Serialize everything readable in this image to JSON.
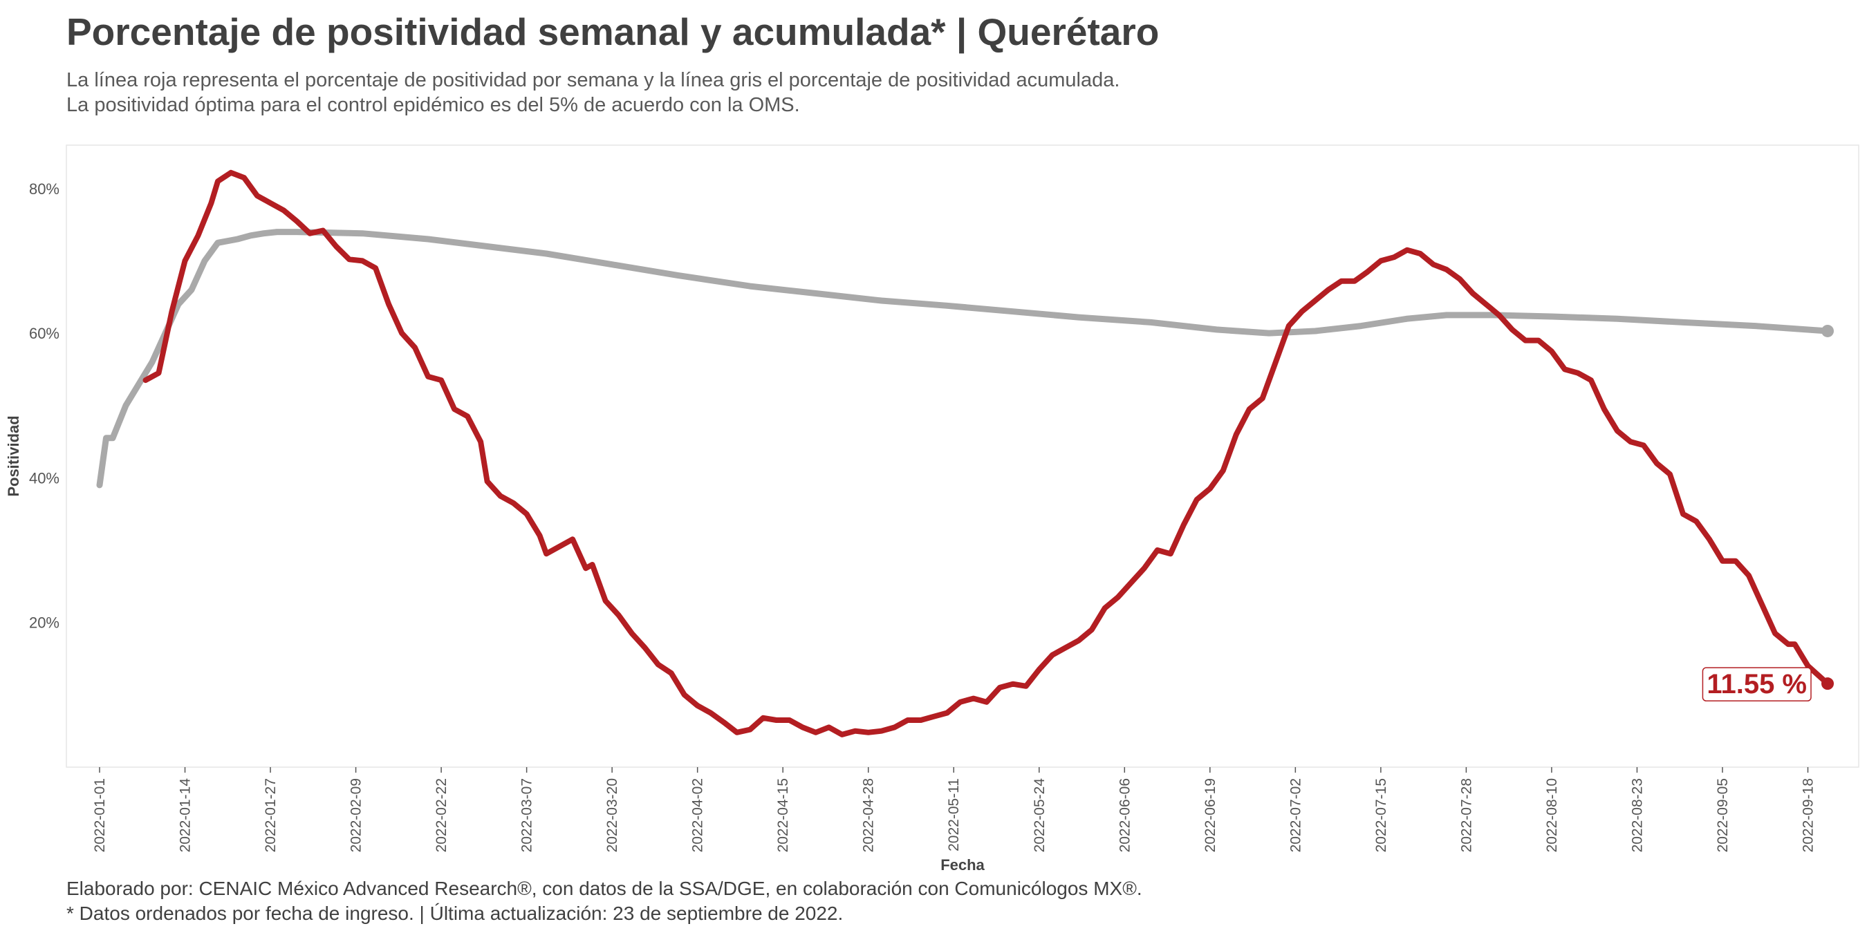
{
  "title": "Porcentaje de positividad semanal y acumulada* | Querétaro",
  "subtitle": [
    "La línea roja representa el porcentaje de positividad por semana y la línea gris el porcentaje de positividad acumulada.",
    "La positividad óptima para el control epidémico es del 5% de acuerdo con la OMS."
  ],
  "caption": [
    "Elaborado por: CENAIC México Advanced Research®, con datos de la SSA/DGE, en colaboración con Comunicólogos MX®.",
    "* Datos ordenados por fecha de ingreso. | Última actualización: 23 de septiembre de 2022."
  ],
  "colors": {
    "weekly": "#b31e22",
    "cumulative": "#a9a9a9"
  },
  "chart_data": {
    "type": "line",
    "xlabel": "Fecha",
    "ylabel": "Positividad",
    "x_start": "2022-01-01",
    "x_end": "2022-09-21",
    "ylim": [
      0,
      86
    ],
    "y_ticks": [
      20,
      40,
      60,
      80
    ],
    "y_tick_labels": [
      "20%",
      "40%",
      "60%",
      "80%"
    ],
    "x_tick_labels": [
      "2022-01-01",
      "2022-01-14",
      "2022-01-27",
      "2022-02-09",
      "2022-02-22",
      "2022-03-07",
      "2022-03-20",
      "2022-04-02",
      "2022-04-15",
      "2022-04-28",
      "2022-05-11",
      "2022-05-24",
      "2022-06-06",
      "2022-06-19",
      "2022-07-02",
      "2022-07-15",
      "2022-07-28",
      "2022-08-10",
      "2022-08-23",
      "2022-09-05",
      "2022-09-18"
    ],
    "grid": false,
    "end_label": "11.55 %",
    "series": [
      {
        "key": "weekly",
        "values": [
          [
            "2022-01-08",
            53.5
          ],
          [
            "2022-01-10",
            54.5
          ],
          [
            "2022-01-12",
            63
          ],
          [
            "2022-01-14",
            70
          ],
          [
            "2022-01-16",
            73.5
          ],
          [
            "2022-01-18",
            78
          ],
          [
            "2022-01-19",
            81
          ],
          [
            "2022-01-21",
            82.2
          ],
          [
            "2022-01-23",
            81.5
          ],
          [
            "2022-01-25",
            79
          ],
          [
            "2022-01-27",
            78
          ],
          [
            "2022-01-29",
            77
          ],
          [
            "2022-01-31",
            75.5
          ],
          [
            "2022-02-02",
            73.8
          ],
          [
            "2022-02-04",
            74.2
          ],
          [
            "2022-02-06",
            72
          ],
          [
            "2022-02-08",
            70.2
          ],
          [
            "2022-02-10",
            70
          ],
          [
            "2022-02-12",
            69
          ],
          [
            "2022-02-14",
            64
          ],
          [
            "2022-02-16",
            60
          ],
          [
            "2022-02-18",
            58
          ],
          [
            "2022-02-20",
            54
          ],
          [
            "2022-02-22",
            53.5
          ],
          [
            "2022-02-24",
            49.5
          ],
          [
            "2022-02-26",
            48.5
          ],
          [
            "2022-02-28",
            45
          ],
          [
            "2022-03-01",
            39.5
          ],
          [
            "2022-03-03",
            37.5
          ],
          [
            "2022-03-05",
            36.5
          ],
          [
            "2022-03-07",
            35
          ],
          [
            "2022-03-09",
            32
          ],
          [
            "2022-03-10",
            29.5
          ],
          [
            "2022-03-12",
            30.5
          ],
          [
            "2022-03-14",
            31.5
          ],
          [
            "2022-03-16",
            27.5
          ],
          [
            "2022-03-17",
            28
          ],
          [
            "2022-03-19",
            23
          ],
          [
            "2022-03-21",
            21
          ],
          [
            "2022-03-23",
            18.5
          ],
          [
            "2022-03-25",
            16.5
          ],
          [
            "2022-03-27",
            14.2
          ],
          [
            "2022-03-29",
            13
          ],
          [
            "2022-03-31",
            10
          ],
          [
            "2022-04-02",
            8.5
          ],
          [
            "2022-04-04",
            7.5
          ],
          [
            "2022-04-06",
            6.2
          ],
          [
            "2022-04-08",
            4.8
          ],
          [
            "2022-04-10",
            5.2
          ],
          [
            "2022-04-12",
            6.8
          ],
          [
            "2022-04-14",
            6.5
          ],
          [
            "2022-04-16",
            6.5
          ],
          [
            "2022-04-18",
            5.5
          ],
          [
            "2022-04-20",
            4.8
          ],
          [
            "2022-04-22",
            5.5
          ],
          [
            "2022-04-24",
            4.5
          ],
          [
            "2022-04-26",
            5
          ],
          [
            "2022-04-28",
            4.8
          ],
          [
            "2022-04-30",
            5
          ],
          [
            "2022-05-02",
            5.5
          ],
          [
            "2022-05-04",
            6.5
          ],
          [
            "2022-05-06",
            6.5
          ],
          [
            "2022-05-08",
            7
          ],
          [
            "2022-05-10",
            7.5
          ],
          [
            "2022-05-12",
            9
          ],
          [
            "2022-05-14",
            9.5
          ],
          [
            "2022-05-16",
            9
          ],
          [
            "2022-05-18",
            11
          ],
          [
            "2022-05-20",
            11.5
          ],
          [
            "2022-05-22",
            11.2
          ],
          [
            "2022-05-24",
            13.5
          ],
          [
            "2022-05-26",
            15.5
          ],
          [
            "2022-05-28",
            16.5
          ],
          [
            "2022-05-30",
            17.5
          ],
          [
            "2022-06-01",
            19
          ],
          [
            "2022-06-03",
            22
          ],
          [
            "2022-06-05",
            23.5
          ],
          [
            "2022-06-07",
            25.5
          ],
          [
            "2022-06-09",
            27.5
          ],
          [
            "2022-06-11",
            30
          ],
          [
            "2022-06-13",
            29.5
          ],
          [
            "2022-06-15",
            33.5
          ],
          [
            "2022-06-17",
            37
          ],
          [
            "2022-06-19",
            38.5
          ],
          [
            "2022-06-21",
            41
          ],
          [
            "2022-06-23",
            46
          ],
          [
            "2022-06-25",
            49.5
          ],
          [
            "2022-06-27",
            51
          ],
          [
            "2022-06-29",
            56
          ],
          [
            "2022-07-01",
            61
          ],
          [
            "2022-07-03",
            63
          ],
          [
            "2022-07-05",
            64.5
          ],
          [
            "2022-07-07",
            66
          ],
          [
            "2022-07-09",
            67.2
          ],
          [
            "2022-07-11",
            67.2
          ],
          [
            "2022-07-13",
            68.5
          ],
          [
            "2022-07-15",
            70
          ],
          [
            "2022-07-17",
            70.5
          ],
          [
            "2022-07-19",
            71.5
          ],
          [
            "2022-07-21",
            71
          ],
          [
            "2022-07-23",
            69.5
          ],
          [
            "2022-07-25",
            68.8
          ],
          [
            "2022-07-27",
            67.5
          ],
          [
            "2022-07-29",
            65.5
          ],
          [
            "2022-07-31",
            64
          ],
          [
            "2022-08-02",
            62.5
          ],
          [
            "2022-08-04",
            60.5
          ],
          [
            "2022-08-06",
            59
          ],
          [
            "2022-08-08",
            59
          ],
          [
            "2022-08-10",
            57.5
          ],
          [
            "2022-08-12",
            55
          ],
          [
            "2022-08-14",
            54.5
          ],
          [
            "2022-08-16",
            53.5
          ],
          [
            "2022-08-18",
            49.5
          ],
          [
            "2022-08-20",
            46.5
          ],
          [
            "2022-08-22",
            45
          ],
          [
            "2022-08-24",
            44.5
          ],
          [
            "2022-08-26",
            42
          ],
          [
            "2022-08-28",
            40.5
          ],
          [
            "2022-08-30",
            35
          ],
          [
            "2022-09-01",
            34
          ],
          [
            "2022-09-03",
            31.5
          ],
          [
            "2022-09-05",
            28.5
          ],
          [
            "2022-09-07",
            28.5
          ],
          [
            "2022-09-09",
            26.5
          ],
          [
            "2022-09-11",
            22.5
          ],
          [
            "2022-09-13",
            18.5
          ],
          [
            "2022-09-15",
            17
          ],
          [
            "2022-09-16",
            17
          ],
          [
            "2022-09-18",
            14
          ],
          [
            "2022-09-21",
            11.55
          ]
        ]
      },
      {
        "key": "cumulative",
        "values": [
          [
            "2022-01-01",
            39
          ],
          [
            "2022-01-02",
            45.5
          ],
          [
            "2022-01-03",
            45.5
          ],
          [
            "2022-01-05",
            50
          ],
          [
            "2022-01-07",
            53
          ],
          [
            "2022-01-09",
            56
          ],
          [
            "2022-01-11",
            60
          ],
          [
            "2022-01-13",
            64
          ],
          [
            "2022-01-15",
            66
          ],
          [
            "2022-01-17",
            70
          ],
          [
            "2022-01-19",
            72.5
          ],
          [
            "2022-01-22",
            73
          ],
          [
            "2022-01-24",
            73.5
          ],
          [
            "2022-01-26",
            73.8
          ],
          [
            "2022-01-28",
            74
          ],
          [
            "2022-01-31",
            74
          ],
          [
            "2022-02-10",
            73.8
          ],
          [
            "2022-02-20",
            73
          ],
          [
            "2022-03-01",
            72
          ],
          [
            "2022-03-10",
            71
          ],
          [
            "2022-03-20",
            69.5
          ],
          [
            "2022-03-30",
            68
          ],
          [
            "2022-04-10",
            66.5
          ],
          [
            "2022-04-20",
            65.5
          ],
          [
            "2022-04-30",
            64.5
          ],
          [
            "2022-05-10",
            63.8
          ],
          [
            "2022-05-20",
            63
          ],
          [
            "2022-05-30",
            62.2
          ],
          [
            "2022-06-10",
            61.5
          ],
          [
            "2022-06-20",
            60.5
          ],
          [
            "2022-06-28",
            60
          ],
          [
            "2022-07-05",
            60.3
          ],
          [
            "2022-07-12",
            61
          ],
          [
            "2022-07-19",
            62
          ],
          [
            "2022-07-25",
            62.5
          ],
          [
            "2022-08-01",
            62.5
          ],
          [
            "2022-08-10",
            62.3
          ],
          [
            "2022-08-20",
            62
          ],
          [
            "2022-08-30",
            61.5
          ],
          [
            "2022-09-10",
            61
          ],
          [
            "2022-09-21",
            60.3
          ]
        ]
      }
    ]
  }
}
